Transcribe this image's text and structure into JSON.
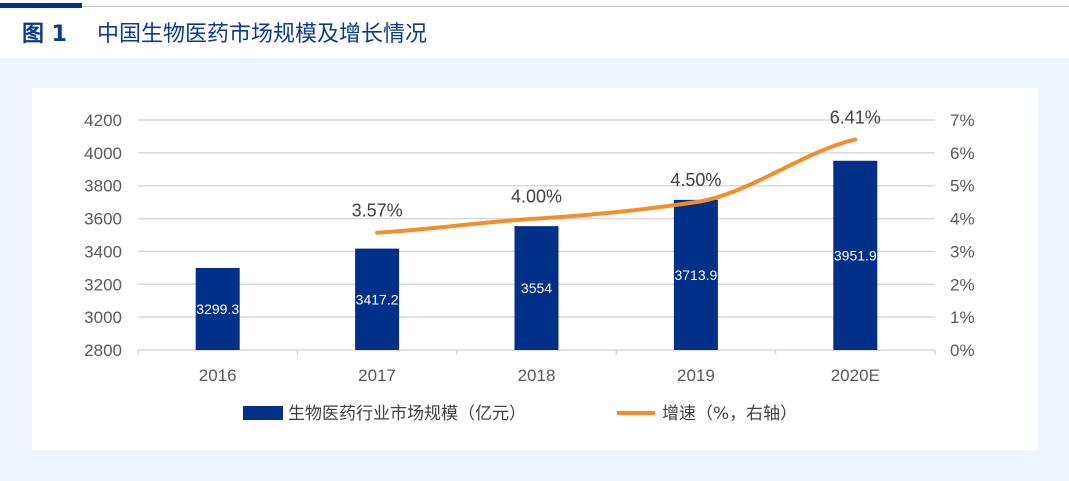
{
  "title": {
    "figure_label": "图 1",
    "text": "中国生物医药市场规模及增长情况"
  },
  "chart_data": {
    "type": "bar+line",
    "categories": [
      "2016",
      "2017",
      "2018",
      "2019",
      "2020E"
    ],
    "series": [
      {
        "name": "生物医药行业市场规模（亿元）",
        "type": "bar",
        "axis": "left",
        "color": "#003087",
        "values": [
          3299.3,
          3417.2,
          3554,
          3713.9,
          3951.9
        ],
        "labels": [
          "3299.3",
          "3417.2",
          "3554",
          "3713.9",
          "3951.9"
        ]
      },
      {
        "name": "增速（%，右轴）",
        "type": "line",
        "axis": "right",
        "color": "#F28E2B",
        "values": [
          null,
          3.57,
          4.0,
          4.5,
          6.41
        ],
        "labels": [
          "",
          "3.57%",
          "4.00%",
          "4.50%",
          "6.41%"
        ]
      }
    ],
    "y_left": {
      "range": [
        2800,
        4200
      ],
      "ticks": [
        "2800",
        "3000",
        "3200",
        "3400",
        "3600",
        "3800",
        "4000",
        "4200"
      ]
    },
    "y_right": {
      "range": [
        0,
        7
      ],
      "ticks": [
        "0%",
        "1%",
        "2%",
        "3%",
        "4%",
        "5%",
        "6%",
        "7%"
      ]
    },
    "grid": true,
    "legend_position": "bottom"
  }
}
